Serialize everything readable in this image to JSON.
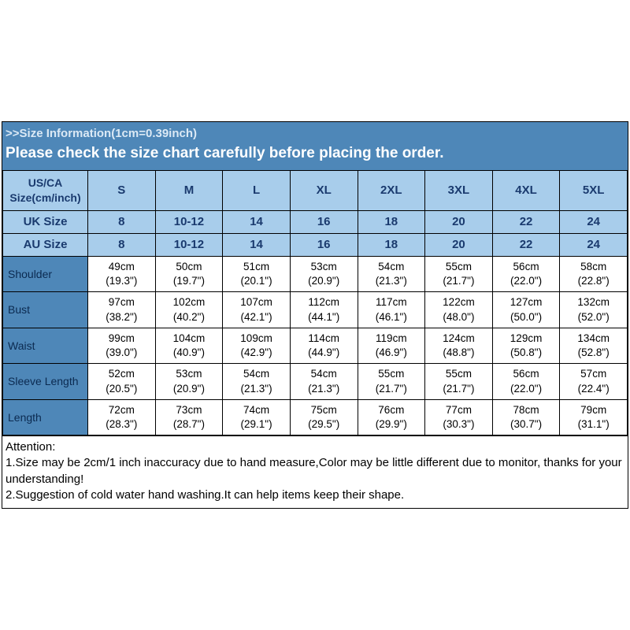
{
  "header": {
    "line1": ">>Size Information(1cm=0.39inch)",
    "line2": "Please check the size chart carefully before placing the order."
  },
  "columns": {
    "label_main": "US/CA Size(cm/inch)",
    "sizes": [
      "S",
      "M",
      "L",
      "XL",
      "2XL",
      "3XL",
      "4XL",
      "5XL"
    ]
  },
  "uk": {
    "label": "UK Size",
    "vals": [
      "8",
      "10-12",
      "14",
      "16",
      "18",
      "20",
      "22",
      "24"
    ]
  },
  "au": {
    "label": "AU Size",
    "vals": [
      "8",
      "10-12",
      "14",
      "16",
      "18",
      "20",
      "22",
      "24"
    ]
  },
  "meas": [
    {
      "label": "Shoulder",
      "cm": [
        "49cm",
        "50cm",
        "51cm",
        "53cm",
        "54cm",
        "55cm",
        "56cm",
        "58cm"
      ],
      "in": [
        "(19.3\")",
        "(19.7\")",
        "(20.1\")",
        "(20.9\")",
        "(21.3\")",
        "(21.7\")",
        "(22.0\")",
        "(22.8\")"
      ]
    },
    {
      "label": "Bust",
      "cm": [
        "97cm",
        "102cm",
        "107cm",
        "112cm",
        "117cm",
        "122cm",
        "127cm",
        "132cm"
      ],
      "in": [
        "(38.2\")",
        "(40.2\")",
        "(42.1\")",
        "(44.1\")",
        "(46.1\")",
        "(48.0\")",
        "(50.0\")",
        "(52.0\")"
      ]
    },
    {
      "label": "Waist",
      "cm": [
        "99cm",
        "104cm",
        "109cm",
        "114cm",
        "119cm",
        "124cm",
        "129cm",
        "134cm"
      ],
      "in": [
        "(39.0\")",
        "(40.9\")",
        "(42.9\")",
        "(44.9\")",
        "(46.9\")",
        "(48.8\")",
        "(50.8\")",
        "(52.8\")"
      ]
    },
    {
      "label": "Sleeve Length",
      "cm": [
        "52cm",
        "53cm",
        "54cm",
        "54cm",
        "55cm",
        "55cm",
        "56cm",
        "57cm"
      ],
      "in": [
        "(20.5\")",
        "(20.9\")",
        "(21.3\")",
        "(21.3\")",
        "(21.7\")",
        "(21.7\")",
        "(22.0\")",
        "(22.4\")"
      ]
    },
    {
      "label": "Length",
      "cm": [
        "72cm",
        "73cm",
        "74cm",
        "75cm",
        "76cm",
        "77cm",
        "78cm",
        "79cm"
      ],
      "in": [
        "(28.3\")",
        "(28.7\")",
        "(29.1\")",
        "(29.5\")",
        "(29.9\")",
        "(30.3\")",
        "(30.7\")",
        "(31.1\")"
      ]
    }
  ],
  "attention": {
    "title": "Attention:",
    "l1": "1.Size may be 2cm/1 inch inaccuracy due to hand measure,Color may be little different due to monitor, thanks for your understanding!",
    "l2": "2.Suggestion of cold water hand washing.It can help items keep their shape."
  },
  "style": {
    "header_bg": "#4e87b8",
    "light_bg": "#a8cdeb",
    "header_text": "#ffffff",
    "dark_text": "#1a3a6e"
  }
}
